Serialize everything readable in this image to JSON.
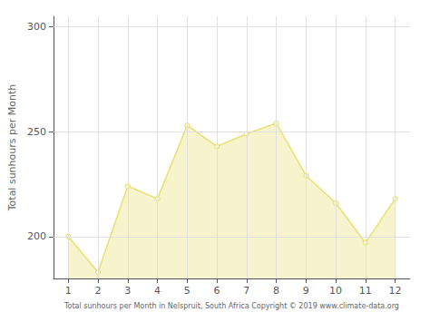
{
  "chart_data": {
    "type": "area",
    "xlabel": "Total sunhours per Month in Nelspruit, South Africa Copyright © 2019 www.climate-data.org",
    "ylabel": "Total sunhours per Month",
    "x": [
      1,
      2,
      3,
      4,
      5,
      6,
      7,
      8,
      9,
      10,
      11,
      12
    ],
    "values": [
      200,
      183,
      224,
      218,
      253,
      243,
      249,
      254,
      229,
      216,
      197,
      218
    ],
    "color": "#E8E070",
    "marker": "circle",
    "xlim": [
      0.5,
      12.5
    ],
    "ylim": [
      180,
      305
    ],
    "xticks": [
      1,
      2,
      3,
      4,
      5,
      6,
      7,
      8,
      9,
      10,
      11,
      12
    ],
    "yticks": [
      200,
      250,
      300
    ],
    "grid": true
  }
}
